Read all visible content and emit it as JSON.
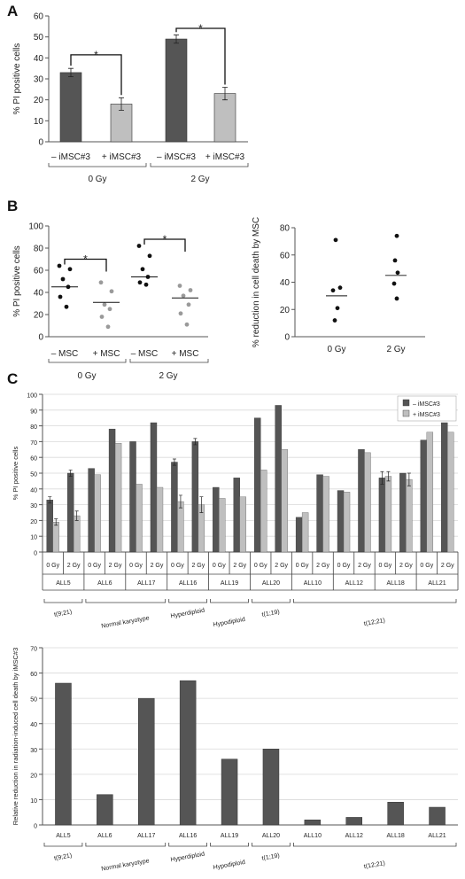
{
  "panels": {
    "a": "A",
    "b": "B",
    "c": "C"
  },
  "chart_data": [
    {
      "id": "A",
      "type": "bar",
      "ylabel": "% PI positive cells",
      "ylim": [
        0,
        60
      ],
      "yticks": [
        0,
        10,
        20,
        30,
        40,
        50,
        60
      ],
      "grid": false,
      "bars": [
        {
          "label": "– iMSC#3",
          "value": 33,
          "err": 2,
          "color": "#555555"
        },
        {
          "label": "+ iMSC#3",
          "value": 18,
          "err": 3,
          "color": "#bfbfbf"
        },
        {
          "label": "– iMSC#3",
          "value": 49,
          "err": 2,
          "color": "#555555"
        },
        {
          "label": "+ iMSC#3",
          "value": 23,
          "err": 3,
          "color": "#bfbfbf"
        }
      ],
      "groups": [
        "0 Gy",
        "2 Gy"
      ],
      "significance": "*"
    },
    {
      "id": "B-left",
      "type": "scatter",
      "ylabel": "% PI positive cells",
      "ylim": [
        0,
        100
      ],
      "yticks": [
        0,
        20,
        40,
        60,
        80,
        100
      ],
      "categories": [
        "– MSC",
        "+ MSC",
        "– MSC",
        "+ MSC"
      ],
      "groups": [
        "0 Gy",
        "2 Gy"
      ],
      "significance": "*",
      "series": [
        {
          "points": [
            64,
            61,
            52,
            45,
            36,
            27
          ],
          "mean": 45,
          "color": "#111111"
        },
        {
          "points": [
            49,
            41,
            29,
            25,
            18,
            9
          ],
          "mean": 31,
          "color": "#9a9a9a"
        },
        {
          "points": [
            82,
            73,
            61,
            54,
            49,
            47
          ],
          "mean": 54,
          "color": "#111111"
        },
        {
          "points": [
            46,
            42,
            37,
            29,
            21,
            11
          ],
          "mean": 35,
          "color": "#9a9a9a"
        }
      ]
    },
    {
      "id": "B-right",
      "type": "scatter",
      "ylabel": "% reduction in cell death by MSC",
      "ylim": [
        0,
        80
      ],
      "yticks": [
        0,
        20,
        40,
        60,
        80
      ],
      "categories": [
        "0 Gy",
        "2 Gy"
      ],
      "series": [
        {
          "points": [
            71,
            36,
            34,
            21,
            12
          ],
          "mean": 30,
          "color": "#111111"
        },
        {
          "points": [
            74,
            56,
            47,
            39,
            28
          ],
          "mean": 45,
          "color": "#111111"
        }
      ]
    },
    {
      "id": "C-top",
      "type": "bar",
      "ylabel": "% PI positive cells",
      "ylim": [
        0,
        100
      ],
      "yticks": [
        0,
        10,
        20,
        30,
        40,
        50,
        60,
        70,
        80,
        90,
        100
      ],
      "grid": true,
      "legend": {
        "position": "top-right",
        "entries": [
          {
            "label": "– iMSC#3",
            "color": "#555555"
          },
          {
            "label": "+ iMSC#3",
            "color": "#bfbfbf"
          }
        ]
      },
      "dose_labels": [
        "0 Gy",
        "2 Gy"
      ],
      "samples": [
        {
          "name": "ALL5",
          "minus": [
            33,
            50
          ],
          "plus": [
            19,
            23
          ],
          "err_minus": [
            2,
            2
          ],
          "err_plus": [
            2,
            3
          ]
        },
        {
          "name": "ALL6",
          "minus": [
            53,
            78
          ],
          "plus": [
            49,
            69
          ]
        },
        {
          "name": "ALL17",
          "minus": [
            70,
            82
          ],
          "plus": [
            43,
            41
          ]
        },
        {
          "name": "ALL16",
          "minus": [
            57,
            70
          ],
          "plus": [
            32,
            30
          ],
          "err_minus": [
            2,
            2
          ],
          "err_plus": [
            4,
            5
          ]
        },
        {
          "name": "ALL19",
          "minus": [
            41,
            47
          ],
          "plus": [
            34,
            35
          ]
        },
        {
          "name": "ALL20",
          "minus": [
            85,
            93
          ],
          "plus": [
            52,
            65
          ]
        },
        {
          "name": "ALL10",
          "minus": [
            22,
            49
          ],
          "plus": [
            25,
            48
          ]
        },
        {
          "name": "ALL12",
          "minus": [
            39,
            65
          ],
          "plus": [
            38,
            63
          ]
        },
        {
          "name": "ALL18",
          "minus": [
            47,
            50
          ],
          "plus": [
            48,
            46
          ],
          "err_minus": [
            4,
            0
          ],
          "err_plus": [
            3,
            4
          ]
        },
        {
          "name": "ALL21",
          "minus": [
            71,
            82
          ],
          "plus": [
            76,
            76
          ]
        }
      ],
      "karyotype_groups": [
        {
          "label": "t(9;21)",
          "from": 0,
          "to": 0
        },
        {
          "label": "Normal karyotype",
          "from": 1,
          "to": 2
        },
        {
          "label": "Hyperdiploid",
          "from": 3,
          "to": 3
        },
        {
          "label": "Hypodiploid",
          "from": 4,
          "to": 4
        },
        {
          "label": "t(1;19)",
          "from": 5,
          "to": 5
        },
        {
          "label": "t(12;21)",
          "from": 6,
          "to": 9
        }
      ]
    },
    {
      "id": "C-bottom",
      "type": "bar",
      "ylabel": "Relative reduction in radiation-induced cell death by iMSC#3",
      "ylim": [
        0,
        70
      ],
      "yticks": [
        0,
        10,
        20,
        30,
        40,
        50,
        60,
        70
      ],
      "grid": true,
      "categories": [
        "ALL5",
        "ALL6",
        "ALL17",
        "ALL16",
        "ALL19",
        "ALL20",
        "ALL10",
        "ALL12",
        "ALL18",
        "ALL21"
      ],
      "values": [
        56,
        12,
        50,
        57,
        26,
        30,
        2,
        3,
        9,
        7
      ],
      "color": "#555555",
      "karyotype_groups": [
        {
          "label": "t(9;21)",
          "from": 0,
          "to": 0
        },
        {
          "label": "Normal karyotype",
          "from": 1,
          "to": 2
        },
        {
          "label": "Hyperdiploid",
          "from": 3,
          "to": 3
        },
        {
          "label": "Hypodiploid",
          "from": 4,
          "to": 4
        },
        {
          "label": "t(1;19)",
          "from": 5,
          "to": 5
        },
        {
          "label": "t(12;21)",
          "from": 6,
          "to": 9
        }
      ]
    }
  ]
}
